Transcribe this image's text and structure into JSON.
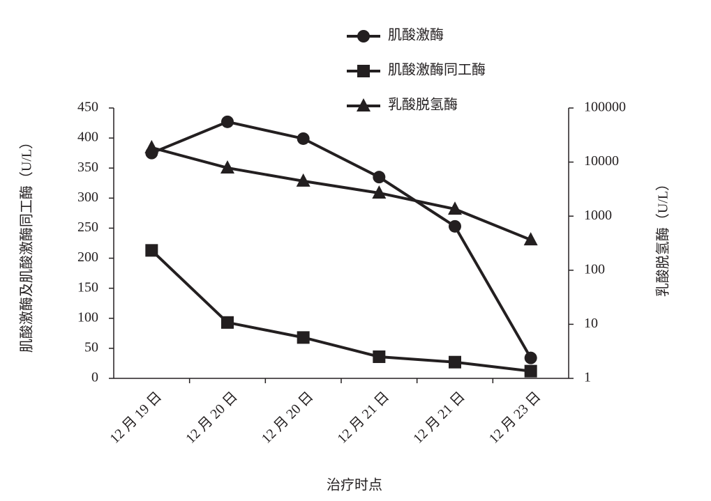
{
  "chart_data": {
    "type": "line",
    "x_label": "治疗时点",
    "y_label": "肌酸激酶及肌酸激酶同工酶（U/L）",
    "y2_label": "乳酸脱氢酶（U/L）",
    "categories": [
      "12 月 19 日",
      "12 月 20 日",
      "12 月 20 日",
      "12 月 21 日",
      "12 月 21 日",
      "12 月 23 日"
    ],
    "ylim": [
      0,
      450
    ],
    "yticks": [
      0,
      50,
      100,
      150,
      200,
      250,
      300,
      350,
      400,
      450
    ],
    "y2lim": [
      1,
      100000
    ],
    "y2ticks": [
      1,
      10,
      100,
      1000,
      10000,
      100000
    ],
    "y2log": true,
    "series": [
      {
        "name": "肌酸激酶",
        "color": "#231f20",
        "marker": "circle",
        "values": [
          375,
          427,
          399,
          335,
          253,
          34
        ]
      },
      {
        "name": "肌酸激酶同工酶",
        "color": "#231f20",
        "marker": "square",
        "values": [
          213,
          93,
          68,
          36,
          27,
          12
        ]
      },
      {
        "name": "乳酸脱氢酶",
        "color": "#231f20",
        "marker": "triangle",
        "axis": "y2",
        "values": [
          18500,
          7800,
          4450,
          2680,
          1350,
          365
        ]
      }
    ]
  }
}
